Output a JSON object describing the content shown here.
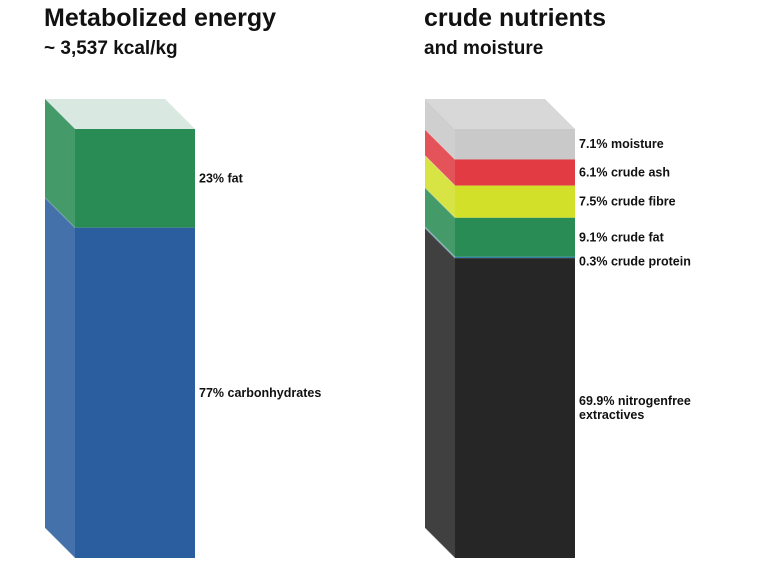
{
  "chart_data": [
    {
      "type": "bar",
      "title": "Metabolized energy",
      "subtitle": "~ 3,537 kcal/kg",
      "segments": [
        {
          "label": "23% fat",
          "value": 23,
          "color": "#2a8c55"
        },
        {
          "label": "77% carbonhydrates",
          "value": 77,
          "color": "#2b5e9e"
        }
      ],
      "empty_top_color": "#d9e8e0"
    },
    {
      "type": "bar",
      "title": "crude nutrients",
      "subtitle": "and moisture",
      "segments": [
        {
          "label": "7.1% moisture",
          "value": 7.1,
          "color": "#c9c9c9"
        },
        {
          "label": "6.1% crude ash",
          "value": 6.1,
          "color": "#e23b43"
        },
        {
          "label": "7.5% crude fibre",
          "value": 7.5,
          "color": "#d3e02a"
        },
        {
          "label": "9.1% crude fat",
          "value": 9.1,
          "color": "#2a8c55"
        },
        {
          "label": "0.3% crude protein",
          "value": 0.3,
          "color": "#2f7fa8"
        },
        {
          "label": "69.9% nitrogenfree extractives",
          "value": 69.9,
          "color": "#262626"
        }
      ],
      "empty_top_color": "#d8d8d8"
    }
  ]
}
